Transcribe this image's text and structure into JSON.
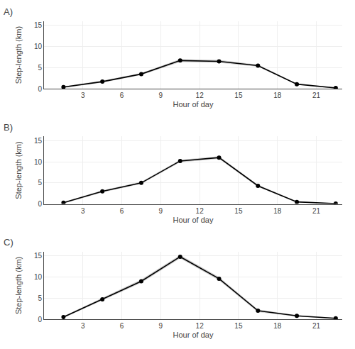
{
  "chart_data": [
    {
      "type": "line",
      "title": "A)",
      "x": [
        1.5,
        4.5,
        7.5,
        10.5,
        13.5,
        16.5,
        19.5,
        22.5
      ],
      "series": [
        {
          "type": "band",
          "color": "#aaaaaa",
          "upper": [
            0.6,
            1.95,
            3.75,
            7.05,
            6.85,
            5.75,
            1.25,
            0.35
          ],
          "lower": [
            0.2,
            1.45,
            3.25,
            6.35,
            6.15,
            5.25,
            0.95,
            0.05
          ]
        },
        {
          "type": "line",
          "color": "#000000",
          "marker": "circle",
          "values": [
            0.4,
            1.7,
            3.5,
            6.7,
            6.5,
            5.5,
            1.1,
            0.2
          ]
        }
      ],
      "xlim": [
        0,
        23
      ],
      "xticks": [
        3,
        6,
        9,
        12,
        15,
        18,
        21
      ],
      "ylim": [
        0,
        16
      ],
      "yticks": [
        0,
        5,
        10,
        15
      ],
      "xlabel": "Hour of day",
      "ylabel": "Step-length (km)",
      "grid": true
    },
    {
      "type": "line",
      "title": "B)",
      "x": [
        1.5,
        4.5,
        7.5,
        10.5,
        13.5,
        16.5,
        19.5,
        22.5
      ],
      "series": [
        {
          "type": "band",
          "color": "#aaaaaa",
          "upper": [
            0.5,
            3.25,
            5.25,
            10.5,
            11.3,
            4.55,
            0.65,
            0.2
          ],
          "lower": [
            0.1,
            2.75,
            4.75,
            9.9,
            10.7,
            4.05,
            0.35,
            0.0
          ]
        },
        {
          "type": "line",
          "color": "#000000",
          "marker": "circle",
          "values": [
            0.3,
            3.0,
            5.0,
            10.2,
            11.0,
            4.3,
            0.5,
            0.1
          ]
        }
      ],
      "xlim": [
        0,
        23
      ],
      "xticks": [
        3,
        6,
        9,
        12,
        15,
        18,
        21
      ],
      "ylim": [
        0,
        16
      ],
      "yticks": [
        0,
        5,
        10,
        15
      ],
      "xlabel": "Hour of day",
      "ylabel": "Step-length (km)",
      "grid": true
    },
    {
      "type": "line",
      "title": "C)",
      "x": [
        1.5,
        4.5,
        7.5,
        10.5,
        13.5,
        16.5,
        19.5,
        22.5
      ],
      "series": [
        {
          "type": "band",
          "color": "#aaaaaa",
          "upper": [
            0.7,
            5.0,
            9.4,
            15.2,
            10.0,
            2.3,
            0.95,
            0.35
          ],
          "lower": [
            0.3,
            4.4,
            8.6,
            14.4,
            9.2,
            1.7,
            0.65,
            0.05
          ]
        },
        {
          "type": "line",
          "color": "#000000",
          "marker": "circle",
          "values": [
            0.5,
            4.7,
            9.0,
            14.8,
            9.6,
            2.0,
            0.8,
            0.2
          ]
        }
      ],
      "xlim": [
        0,
        23
      ],
      "xticks": [
        3,
        6,
        9,
        12,
        15,
        18,
        21
      ],
      "ylim": [
        0,
        16
      ],
      "yticks": [
        0,
        5,
        10,
        15
      ],
      "xlabel": "Hour of day",
      "ylabel": "Step-length (km)",
      "grid": true
    }
  ]
}
